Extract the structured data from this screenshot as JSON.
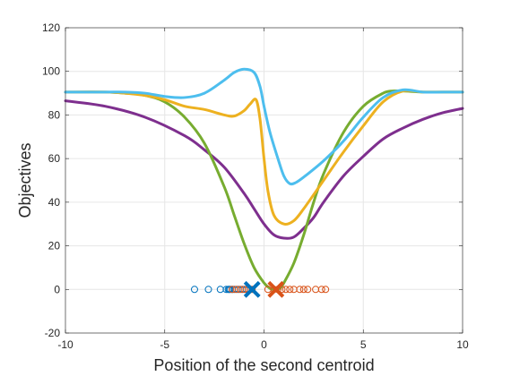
{
  "chart_data": {
    "type": "line",
    "title": "",
    "xlabel": "Position of the second centroid",
    "ylabel": "Objectives",
    "xlim": [
      -10,
      10
    ],
    "ylim": [
      -20,
      120
    ],
    "xticks": [
      -10,
      -5,
      0,
      5,
      10
    ],
    "yticks": [
      -20,
      0,
      20,
      40,
      60,
      80,
      100,
      120
    ],
    "xtick_labels": [
      "-10",
      "-5",
      "0",
      "5",
      "10"
    ],
    "ytick_labels": [
      "-20",
      "0",
      "20",
      "40",
      "60",
      "80",
      "100",
      "120"
    ],
    "grid": true,
    "legend": "none",
    "series": [
      {
        "color": "#7e2f8e",
        "x": [
          -10,
          -8,
          -6,
          -4,
          -3,
          -2,
          -1,
          -0.5,
          0,
          0.5,
          1,
          1.5,
          2,
          2.5,
          3,
          4,
          5,
          6,
          7,
          8,
          9,
          10
        ],
        "y": [
          86.5,
          84,
          79,
          70.5,
          64,
          56,
          44,
          37,
          30,
          25,
          23.5,
          24,
          28,
          33,
          40,
          52,
          61,
          69,
          74,
          78,
          81,
          83
        ]
      },
      {
        "color": "#77ac30",
        "x": [
          -10,
          -8,
          -7,
          -6,
          -5,
          -4,
          -3,
          -2,
          -1.5,
          -1,
          -0.5,
          0,
          0.3,
          0.5,
          0.8,
          1,
          1.5,
          2,
          2.5,
          3,
          4,
          5,
          6,
          6.5,
          7,
          8,
          9,
          10
        ],
        "y": [
          90.5,
          90.5,
          90,
          89,
          86,
          79,
          67,
          47,
          34,
          21,
          10,
          3,
          0.5,
          0,
          0.5,
          3,
          12,
          25,
          40,
          53,
          72,
          84,
          90,
          91,
          91,
          90.5,
          90.5,
          90.5
        ],
        "points": {
          "x": [
            0.5
          ],
          "y": [
            0
          ]
        }
      },
      {
        "color": "#edb120",
        "x": [
          -10,
          -8,
          -7,
          -6,
          -5,
          -4,
          -3,
          -2,
          -1.5,
          -1,
          -0.7,
          -0.4,
          -0.2,
          0,
          0.2,
          0.5,
          1,
          1.5,
          2,
          3,
          4,
          5,
          6,
          7,
          8,
          9,
          10
        ],
        "y": [
          90.5,
          90.5,
          90,
          89,
          87,
          84,
          82.5,
          80,
          79.5,
          82,
          85,
          87,
          78,
          60,
          45,
          34,
          30,
          31.5,
          37,
          50,
          63,
          75,
          86,
          91,
          90.5,
          90.5,
          90.5
        ]
      },
      {
        "color": "#4dbeee",
        "x": [
          -10,
          -8,
          -7,
          -6,
          -5,
          -4,
          -3,
          -2,
          -1.5,
          -1,
          -0.5,
          -0.2,
          0,
          0.3,
          0.7,
          1,
          1.3,
          1.6,
          2,
          3,
          4,
          5,
          6,
          7,
          8,
          9,
          10
        ],
        "y": [
          90.5,
          90.5,
          90.5,
          90,
          88.5,
          88,
          90,
          96,
          99.5,
          101,
          99.5,
          93,
          84,
          72,
          60,
          52,
          48.5,
          49,
          51.5,
          59,
          68,
          79,
          88,
          91.5,
          90.5,
          90.5,
          90.5
        ]
      },
      {
        "color": "#0072bd",
        "type": "scatter",
        "marker": "o",
        "x": [
          -3.5,
          -2.8,
          -2.2,
          -1.9,
          -1.8,
          -1.75,
          -1.7,
          -1.6,
          -1.5,
          -1.3,
          -1.1,
          -0.9,
          -0.7
        ],
        "y": [
          0,
          0,
          0,
          0,
          0,
          0,
          0,
          0,
          0,
          0,
          0,
          0,
          0
        ]
      },
      {
        "color": "#d95319",
        "type": "scatter",
        "marker": "o",
        "x": [
          -1.6,
          -1.4,
          -1.2,
          -1.0,
          -0.8,
          -0.6,
          0.2,
          0.5,
          0.7,
          0.9,
          1.1,
          1.3,
          1.5,
          1.8,
          2.0,
          2.2,
          2.6,
          2.9,
          3.1
        ],
        "y": [
          0,
          0,
          0,
          0,
          0,
          0,
          0,
          0,
          0,
          0,
          0,
          0,
          0,
          0,
          0,
          0,
          0,
          0,
          0
        ]
      },
      {
        "color": "#0072bd",
        "type": "scatter",
        "marker": "x",
        "x": [
          -0.6
        ],
        "y": [
          0
        ]
      },
      {
        "color": "#d95319",
        "type": "scatter",
        "marker": "x",
        "x": [
          0.6
        ],
        "y": [
          0
        ]
      }
    ]
  }
}
